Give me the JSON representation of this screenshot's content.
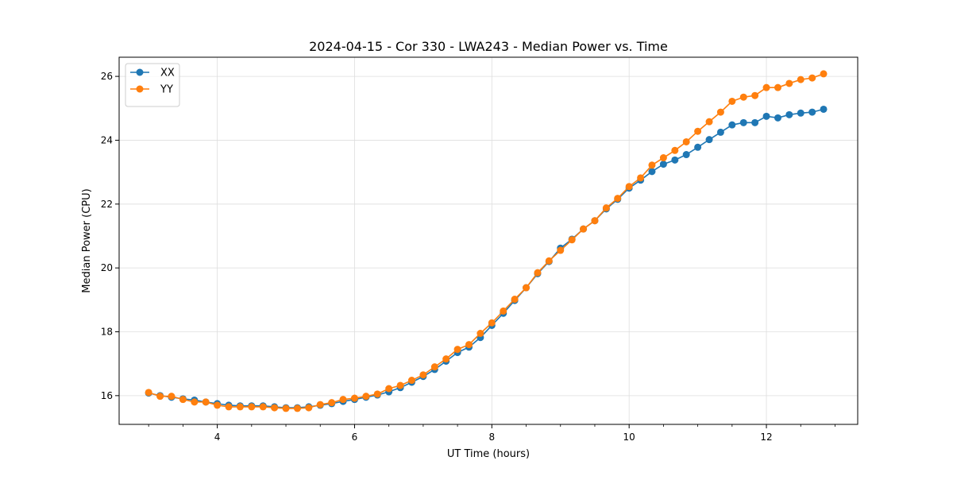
{
  "chart_data": {
    "type": "line",
    "title": "2024-04-15 - Cor 330 - LWA243 - Median Power vs. Time",
    "xlabel": "UT Time (hours)",
    "ylabel": "Median Power (CPU)",
    "xlim": [
      2.57,
      13.33
    ],
    "ylim": [
      15.1,
      26.6
    ],
    "x_ticks": [
      4,
      6,
      8,
      10,
      12
    ],
    "y_ticks": [
      16,
      18,
      20,
      22,
      24,
      26
    ],
    "x_tick_labels": [
      "4",
      "6",
      "8",
      "10",
      "12"
    ],
    "y_tick_labels": [
      "16",
      "18",
      "20",
      "22",
      "24",
      "26"
    ],
    "x_minor_step": 0.5,
    "grid": true,
    "legend_position": "top-left",
    "x": [
      3.0,
      3.167,
      3.333,
      3.5,
      3.667,
      3.833,
      4.0,
      4.167,
      4.333,
      4.5,
      4.667,
      4.833,
      5.0,
      5.167,
      5.333,
      5.5,
      5.667,
      5.833,
      6.0,
      6.167,
      6.333,
      6.5,
      6.667,
      6.833,
      7.0,
      7.167,
      7.333,
      7.5,
      7.667,
      7.833,
      8.0,
      8.167,
      8.333,
      8.5,
      8.667,
      8.833,
      9.0,
      9.167,
      9.333,
      9.5,
      9.667,
      9.833,
      10.0,
      10.167,
      10.333,
      10.5,
      10.667,
      10.833,
      11.0,
      11.167,
      11.333,
      11.5,
      11.667,
      11.833,
      12.0,
      12.167,
      12.333,
      12.5,
      12.667,
      12.833
    ],
    "series": [
      {
        "name": "XX",
        "color": "#1f77b4",
        "values": [
          16.08,
          16.0,
          15.95,
          15.9,
          15.86,
          15.8,
          15.75,
          15.7,
          15.68,
          15.68,
          15.68,
          15.65,
          15.62,
          15.62,
          15.65,
          15.7,
          15.75,
          15.82,
          15.88,
          15.95,
          16.02,
          16.12,
          16.25,
          16.42,
          16.6,
          16.82,
          17.08,
          17.35,
          17.52,
          17.82,
          18.2,
          18.58,
          18.98,
          19.38,
          19.82,
          20.2,
          20.62,
          20.9,
          21.22,
          21.48,
          21.85,
          22.15,
          22.5,
          22.75,
          23.02,
          23.25,
          23.38,
          23.55,
          23.78,
          24.02,
          24.25,
          24.48,
          24.55,
          24.55,
          24.75,
          24.7,
          24.8,
          24.85,
          24.88,
          24.97
        ]
      },
      {
        "name": "YY",
        "color": "#ff7f0e",
        "values": [
          16.1,
          15.98,
          15.98,
          15.88,
          15.8,
          15.8,
          15.7,
          15.65,
          15.65,
          15.65,
          15.65,
          15.62,
          15.6,
          15.6,
          15.62,
          15.72,
          15.78,
          15.88,
          15.92,
          15.98,
          16.05,
          16.22,
          16.32,
          16.48,
          16.65,
          16.9,
          17.15,
          17.45,
          17.6,
          17.95,
          18.28,
          18.65,
          19.02,
          19.38,
          19.85,
          20.22,
          20.55,
          20.88,
          21.22,
          21.48,
          21.88,
          22.18,
          22.55,
          22.82,
          23.22,
          23.45,
          23.68,
          23.95,
          24.28,
          24.58,
          24.88,
          25.22,
          25.35,
          25.4,
          25.65,
          25.65,
          25.78,
          25.9,
          25.95,
          26.08
        ]
      }
    ]
  }
}
